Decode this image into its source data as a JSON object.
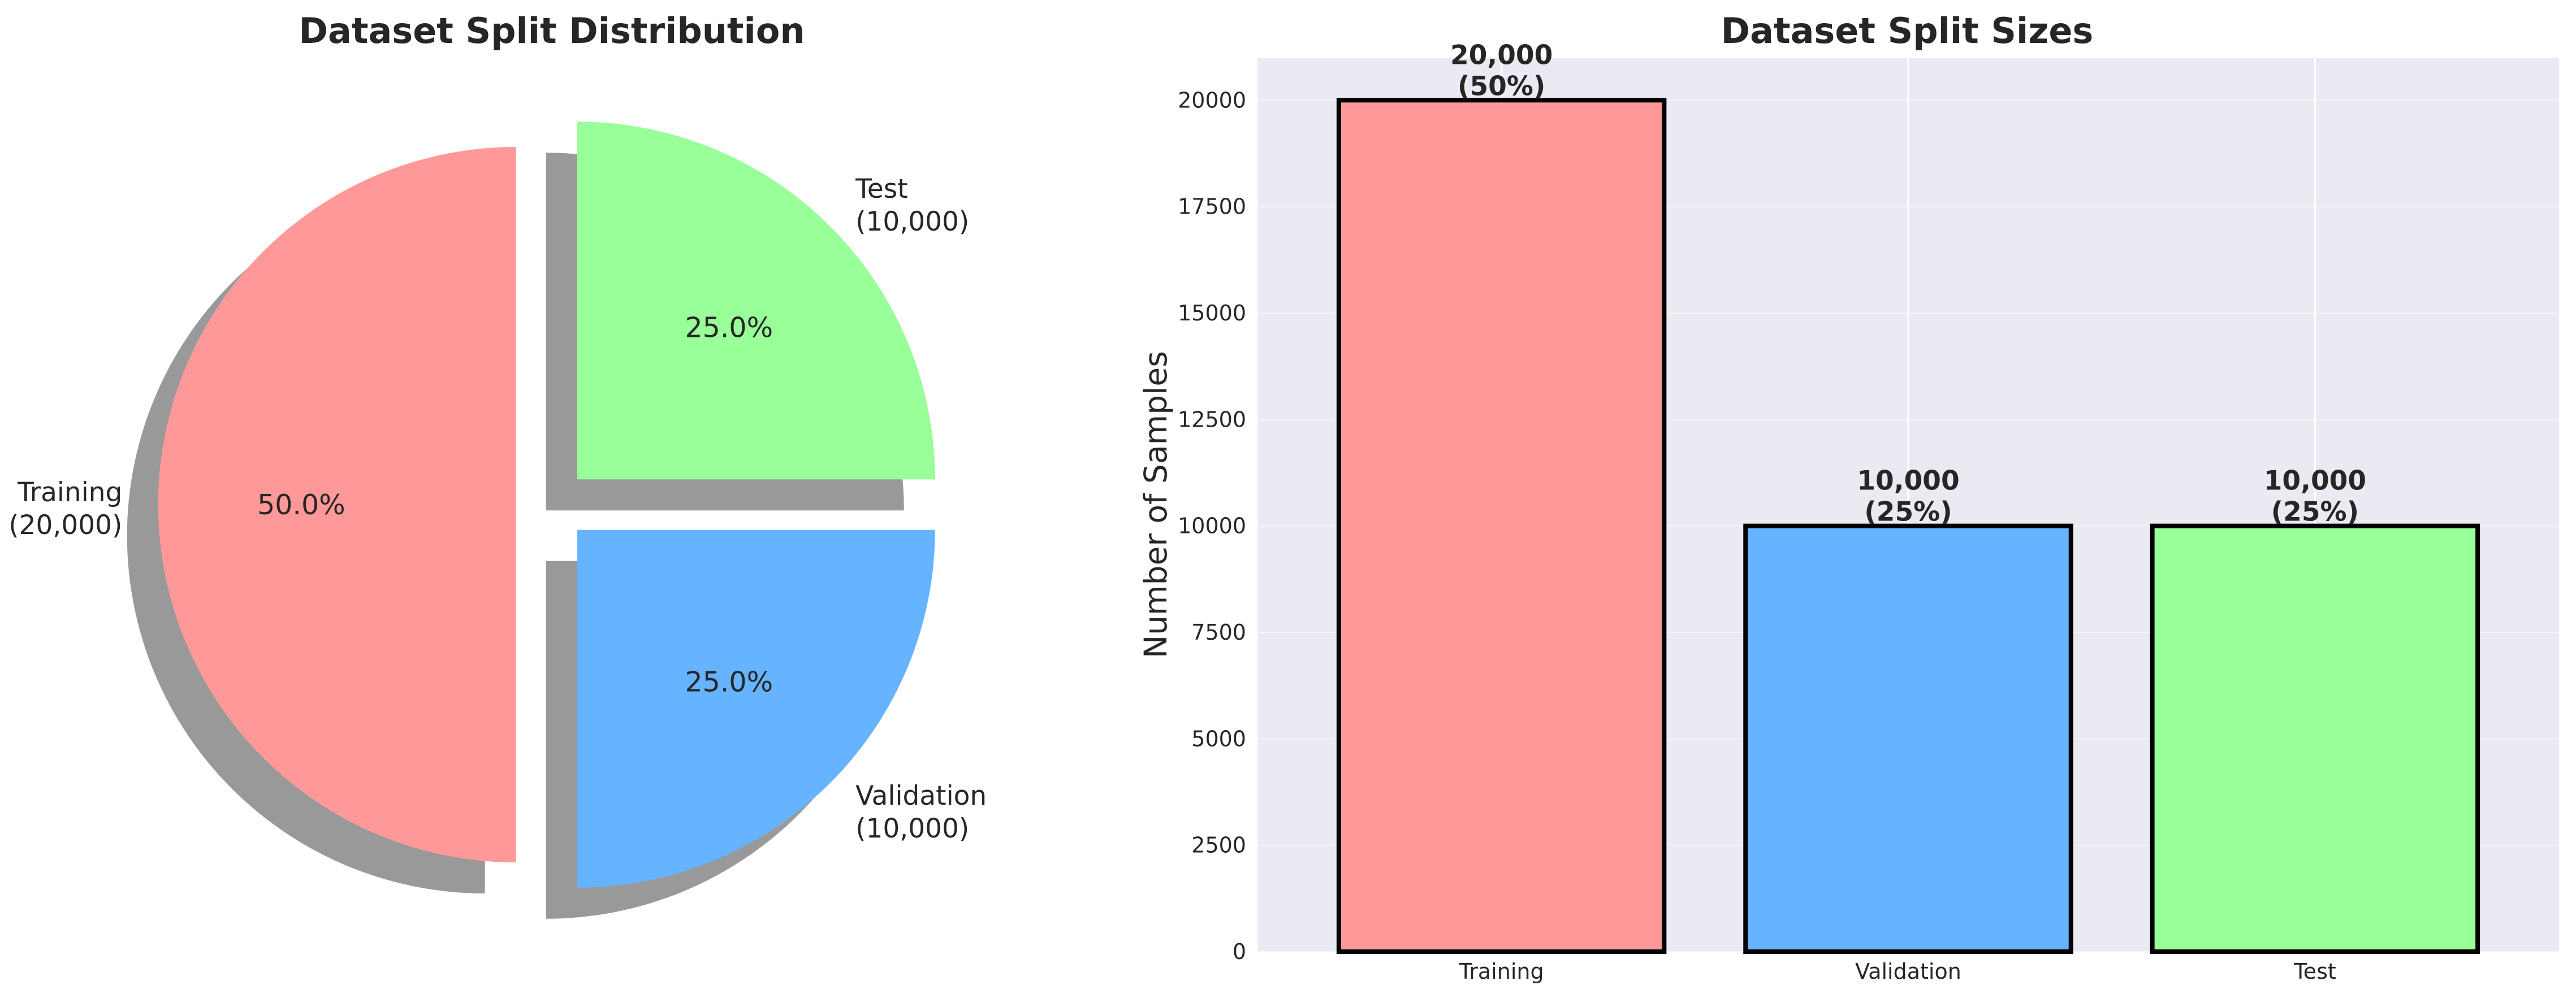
{
  "chart_data": [
    {
      "type": "pie",
      "title": "Dataset Split Distribution",
      "categories": [
        "Training",
        "Validation",
        "Test"
      ],
      "values": [
        20000,
        10000,
        10000
      ],
      "percent_labels": [
        "50.0%",
        "25.0%",
        "25.0%"
      ],
      "labels": [
        {
          "name": "Training",
          "count": "(20,000)"
        },
        {
          "name": "Validation",
          "count": "(10,000)"
        },
        {
          "name": "Test",
          "count": "(10,000)"
        }
      ],
      "colors": [
        "#ff9999",
        "#66b3ff",
        "#99ff99"
      ],
      "shadow": true,
      "exploded": true
    },
    {
      "type": "bar",
      "title": "Dataset Split Sizes",
      "categories": [
        "Training",
        "Validation",
        "Test"
      ],
      "values": [
        20000,
        10000,
        10000
      ],
      "value_labels": [
        {
          "count": "20,000",
          "pct": "(50%)"
        },
        {
          "count": "10,000",
          "pct": "(25%)"
        },
        {
          "count": "10,000",
          "pct": "(25%)"
        }
      ],
      "colors": [
        "#ff9999",
        "#66b3ff",
        "#99ff99"
      ],
      "xlabel": "",
      "ylabel": "Number of Samples",
      "ylim": [
        0,
        21000
      ],
      "yticks": [
        0,
        2500,
        5000,
        7500,
        10000,
        12500,
        15000,
        17500,
        20000
      ],
      "grid": true,
      "background": "#eaeaf2"
    }
  ]
}
